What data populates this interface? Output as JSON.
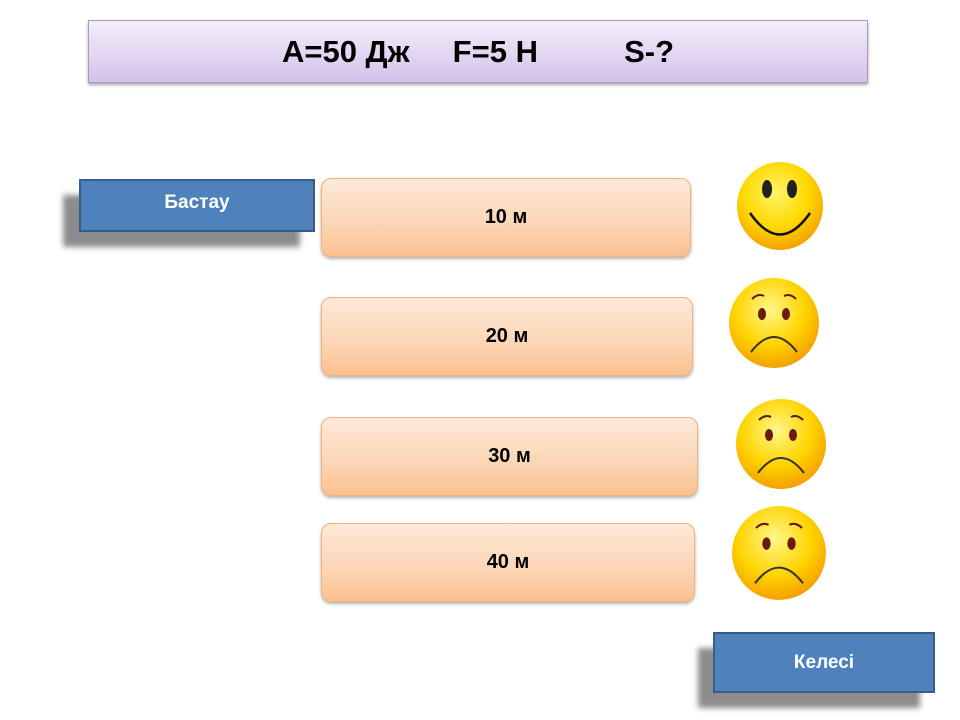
{
  "title": "A=50 Дж     F=5 Н          S-?",
  "start_button": "Бастау",
  "next_button": "Келесі",
  "answers": [
    {
      "label": "10 м",
      "feedback": "smile-icon"
    },
    {
      "label": "20 м",
      "feedback": "sad-face-icon"
    },
    {
      "label": "30 м",
      "feedback": "sad-face-icon"
    },
    {
      "label": "40 м",
      "feedback": "sad-face-icon"
    }
  ],
  "colors": {
    "button": "#4f81bd",
    "answer": "#fcd5b4",
    "title_bg": "#d4c2ea",
    "face": "#ffd200"
  }
}
